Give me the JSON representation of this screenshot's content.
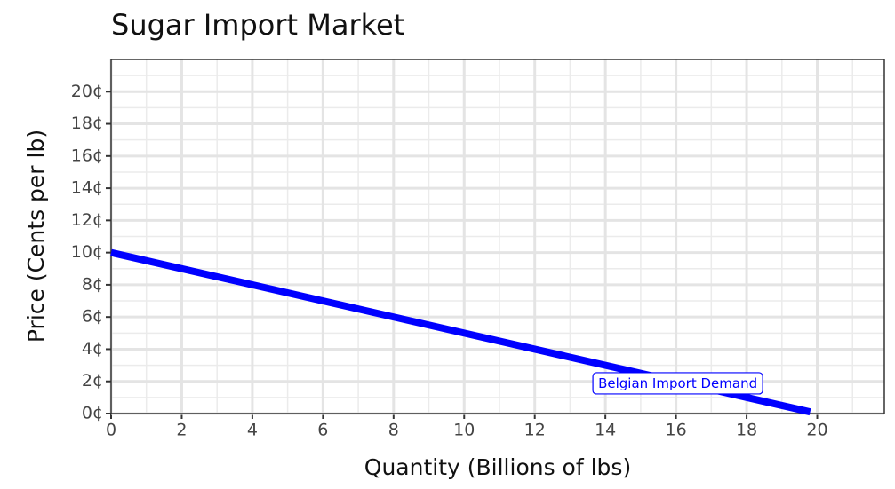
{
  "chart_data": {
    "type": "line",
    "title": "Sugar Import Market",
    "x_label": "Quantity (Billions of lbs)",
    "y_label": "Price (Cents per lb)",
    "xlim": [
      0,
      21.9
    ],
    "ylim": [
      0,
      22
    ],
    "xticks": [
      0,
      2,
      4,
      6,
      8,
      10,
      12,
      14,
      16,
      18,
      20
    ],
    "yticks": [
      {
        "value": 0,
        "label": "0¢"
      },
      {
        "value": 2,
        "label": "2¢"
      },
      {
        "value": 4,
        "label": "4¢"
      },
      {
        "value": 6,
        "label": "6¢"
      },
      {
        "value": 8,
        "label": "8¢"
      },
      {
        "value": 10,
        "label": "10¢"
      },
      {
        "value": 12,
        "label": "12¢"
      },
      {
        "value": 14,
        "label": "14¢"
      },
      {
        "value": 16,
        "label": "16¢"
      },
      {
        "value": 18,
        "label": "18¢"
      },
      {
        "value": 20,
        "label": "20¢"
      }
    ],
    "grid": true,
    "minor_grid": true,
    "series": [
      {
        "name": "Belgian Import Demand",
        "color": "#0000ff",
        "x": [
          0,
          19.8
        ],
        "values": [
          10,
          0.1
        ]
      }
    ],
    "annotations": [
      {
        "text": "Belgian Import Demand",
        "x": 16.05,
        "y": 1.85
      }
    ]
  }
}
